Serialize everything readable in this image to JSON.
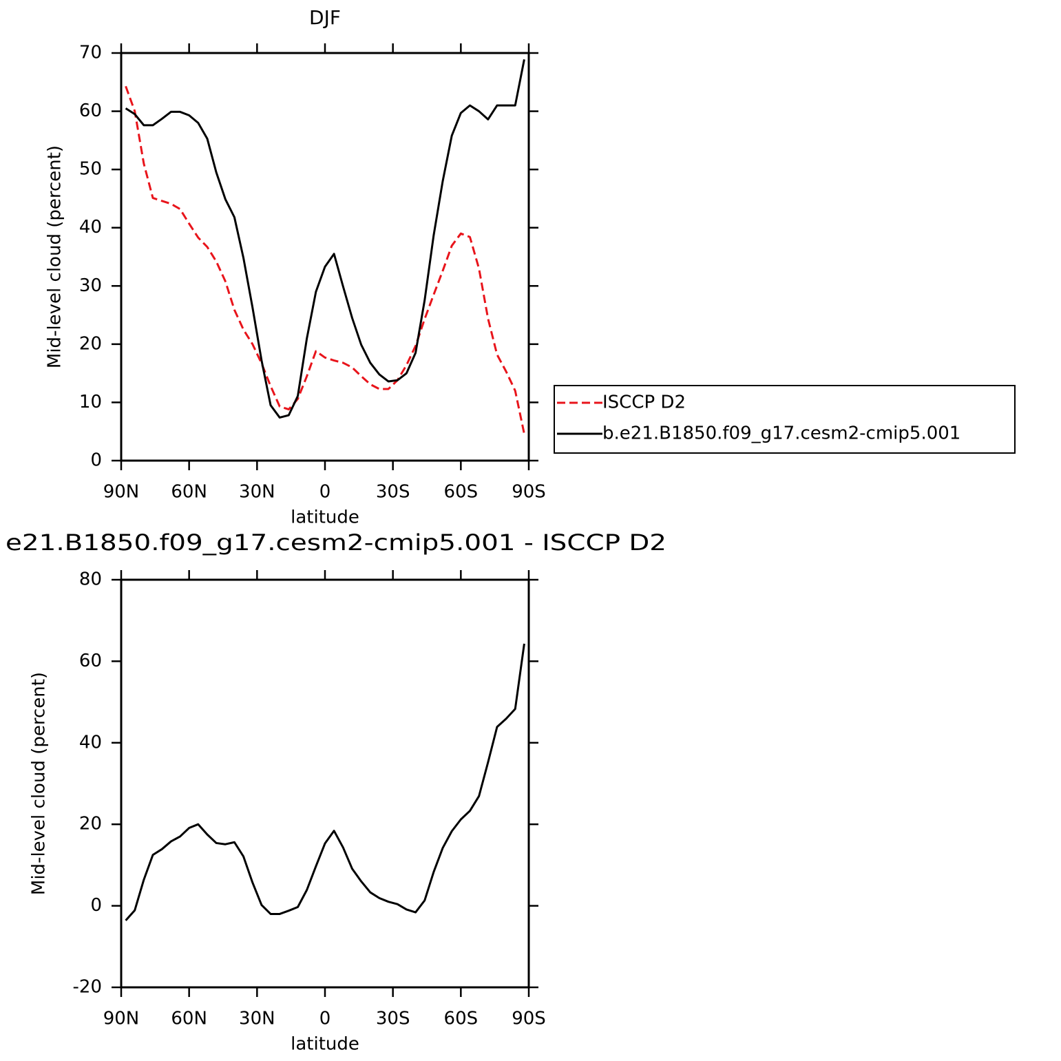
{
  "chart_data": [
    {
      "type": "line",
      "title": "DJF",
      "xlabel": "latitude",
      "ylabel": "Mid-level cloud (percent)",
      "x": [
        88,
        84,
        80,
        76,
        72,
        68,
        64,
        60,
        56,
        52,
        48,
        44,
        40,
        36,
        32,
        28,
        24,
        20,
        16,
        12,
        8,
        4,
        0,
        -4,
        -8,
        -12,
        -16,
        -20,
        -24,
        -28,
        -32,
        -36,
        -40,
        -44,
        -48,
        -52,
        -56,
        -60,
        -64,
        -68,
        -72,
        -76,
        -80,
        -84,
        -88
      ],
      "series": [
        {
          "name": "ISCCP D2",
          "color": "#e8141b",
          "dashed": true,
          "values": [
            64.3,
            60,
            51,
            45.1,
            44.6,
            44.1,
            43.2,
            40.7,
            38.3,
            36.7,
            34.2,
            30.8,
            25.9,
            22.5,
            20,
            16.7,
            12.8,
            9.3,
            8.8,
            10.6,
            14.5,
            18.8,
            17.7,
            17.2,
            16.8,
            16,
            14.5,
            13.1,
            12.3,
            12.3,
            13.8,
            16.4,
            19.7,
            24.3,
            28.5,
            32.6,
            36.9,
            39,
            38.4,
            33,
            24.4,
            18.2,
            15.3,
            12,
            4.6
          ]
        },
        {
          "name": "b.e21.B1850.f09_g17.cesm2-cmip5.001",
          "color": "#000000",
          "dashed": false,
          "values": [
            60.5,
            59.5,
            57.6,
            57.6,
            58.7,
            59.9,
            59.9,
            59.3,
            58,
            55.3,
            49.5,
            44.9,
            41.8,
            34.8,
            26.3,
            17.2,
            9.5,
            7.4,
            7.8,
            11.1,
            21,
            29,
            33.3,
            35.5,
            29.9,
            24.5,
            19.9,
            16.8,
            14.8,
            13.6,
            13.8,
            15,
            18.5,
            27.5,
            38.7,
            48,
            55.8,
            59.7,
            61,
            60,
            58.6,
            61,
            61,
            61,
            68.9
          ]
        }
      ],
      "xlim": [
        90,
        -90
      ],
      "xticks": [
        {
          "value": 90,
          "label": "90N"
        },
        {
          "value": 60,
          "label": "60N"
        },
        {
          "value": 30,
          "label": "30N"
        },
        0,
        {
          "value": -30,
          "label": "30S"
        },
        {
          "value": -60,
          "label": "60S"
        },
        {
          "value": -90,
          "label": "90S"
        }
      ],
      "ylim": [
        0,
        70
      ],
      "yticks": [
        0,
        10,
        20,
        30,
        40,
        50,
        60,
        70
      ],
      "legend": "right"
    },
    {
      "type": "line",
      "title": "e21.B1850.f09_g17.cesm2-cmip5.001 - ISCCP D2",
      "xlabel": "latitude",
      "ylabel": "Mid-level cloud (percent)",
      "x": [
        88,
        84,
        80,
        76,
        72,
        68,
        64,
        60,
        56,
        52,
        48,
        44,
        40,
        36,
        32,
        28,
        24,
        20,
        16,
        12,
        8,
        4,
        0,
        -4,
        -8,
        -12,
        -16,
        -20,
        -24,
        -28,
        -32,
        -36,
        -40,
        -44,
        -48,
        -52,
        -56,
        -60,
        -64,
        -68,
        -72,
        -76,
        -80,
        -84,
        -88
      ],
      "series": [
        {
          "color": "#000000",
          "dashed": false,
          "values": [
            -3.6,
            -1.1,
            6.4,
            12.5,
            13.9,
            15.8,
            17,
            19.1,
            20,
            17.5,
            15.4,
            15.1,
            15.6,
            12.1,
            5.7,
            0.2,
            -2,
            -2,
            -1.2,
            -0.3,
            3.9,
            9.7,
            15.3,
            18.4,
            14.3,
            9.1,
            6,
            3.3,
            1.9,
            1,
            0.4,
            -0.9,
            -1.6,
            1.3,
            8.3,
            14.2,
            18.3,
            21.2,
            23.3,
            26.9,
            35.2,
            43.9,
            45.9,
            48.3,
            64.3
          ]
        }
      ],
      "xlim": [
        90,
        -90
      ],
      "xticks": [
        {
          "value": 90,
          "label": "90N"
        },
        {
          "value": 60,
          "label": "60N"
        },
        {
          "value": 30,
          "label": "30N"
        },
        0,
        {
          "value": -30,
          "label": "30S"
        },
        {
          "value": -60,
          "label": "60S"
        },
        {
          "value": -90,
          "label": "90S"
        }
      ],
      "ylim": [
        -20,
        80
      ],
      "yticks": [
        -20,
        0,
        20,
        40,
        60,
        80
      ]
    }
  ]
}
